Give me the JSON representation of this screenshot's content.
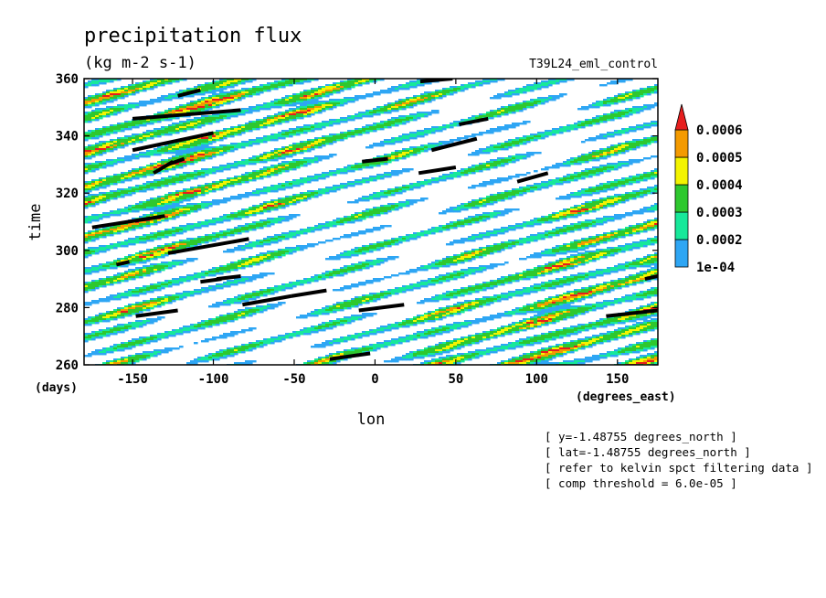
{
  "chart_data": {
    "type": "heatmap",
    "title": "precipitation flux",
    "units": "(kg m-2 s-1)",
    "run_label": "T39L24_eml_control",
    "xlabel": "lon",
    "xunit": "(degrees_east)",
    "ylabel": "time",
    "yunit": "(days)",
    "xlim": [
      -180,
      175
    ],
    "ylim": [
      260,
      360
    ],
    "x_ticks": [
      -150,
      -100,
      -50,
      0,
      50,
      100,
      150
    ],
    "x_tick_labels": [
      "-150",
      "-100",
      "-50",
      "0",
      "50",
      "100",
      "150"
    ],
    "y_ticks": [
      260,
      280,
      300,
      320,
      340,
      360
    ],
    "y_tick_labels": [
      "260",
      "280",
      "300",
      "320",
      "340",
      "360"
    ],
    "colorbar": {
      "levels": [
        "1e-04",
        "0.0002",
        "0.0003",
        "0.0004",
        "0.0005",
        "0.0006"
      ],
      "colors": [
        "#2ea6f4",
        "#17e89a",
        "#2ec82e",
        "#f4f400",
        "#f49a00",
        "#e61e1e"
      ]
    },
    "kelvin_segments": [
      [
        -150,
        335,
        -100,
        341
      ],
      [
        -150,
        346,
        -83,
        349
      ],
      [
        -122,
        354,
        -108,
        356
      ],
      [
        -137,
        327,
        -125,
        331
      ],
      [
        -128,
        330,
        -118,
        332
      ],
      [
        -175,
        308,
        -130,
        312
      ],
      [
        -128,
        299,
        -78,
        304
      ],
      [
        -160,
        295,
        -152,
        296
      ],
      [
        -108,
        289,
        -95,
        290
      ],
      [
        -98,
        290,
        -83,
        291
      ],
      [
        -148,
        277,
        -122,
        279
      ],
      [
        -82,
        281,
        -52,
        284
      ],
      [
        -52,
        284,
        -30,
        286
      ],
      [
        -10,
        279,
        18,
        281
      ],
      [
        -28,
        262,
        -3,
        264
      ],
      [
        -8,
        331,
        8,
        332
      ],
      [
        27,
        327,
        50,
        329
      ],
      [
        35,
        335,
        63,
        339
      ],
      [
        52,
        344,
        70,
        346
      ],
      [
        88,
        324,
        107,
        327
      ],
      [
        28,
        359,
        48,
        360
      ],
      [
        143,
        277,
        175,
        279
      ],
      [
        167,
        290,
        175,
        291
      ]
    ],
    "annotations": [
      "[ y=-1.48755 degrees_north ]",
      "[ lat=-1.48755 degrees_north ]",
      "[ refer to kelvin spct filtering data ]",
      "[ comp threshold = 6.0e-05 ]"
    ]
  }
}
